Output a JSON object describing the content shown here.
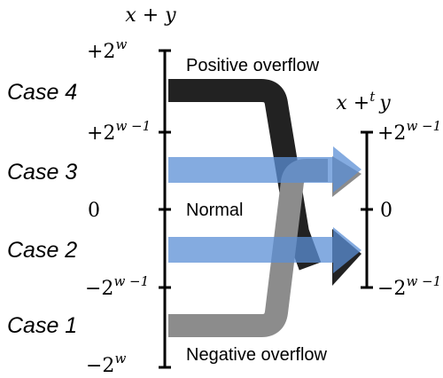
{
  "axes": {
    "left_title": "x + y",
    "right_title_base": "x +",
    "right_title_op": "t",
    "right_title_var": "y"
  },
  "left_ticks": [
    {
      "prefix": "+2",
      "exp": "w"
    },
    {
      "prefix": "+2",
      "exp": "w −1"
    },
    {
      "prefix": "0",
      "exp": ""
    },
    {
      "prefix": "−2",
      "exp": "w −1"
    },
    {
      "prefix": "−2",
      "exp": "w"
    }
  ],
  "right_ticks": [
    {
      "prefix": "+2",
      "exp": "w −1"
    },
    {
      "prefix": "0",
      "exp": ""
    },
    {
      "prefix": "−2",
      "exp": "w −1"
    }
  ],
  "cases": [
    "Case 4",
    "Case 3",
    "Case 2",
    "Case 1"
  ],
  "regions": {
    "positive": "Positive overflow",
    "normal": "Normal",
    "negative": "Negative overflow"
  },
  "colors": {
    "positive_arrow": "#222222",
    "negative_arrow": "#8c8c8c",
    "normal_arrow": "#5b8fd6",
    "normal_arrow_alpha": 0.75,
    "axis": "#000000"
  }
}
